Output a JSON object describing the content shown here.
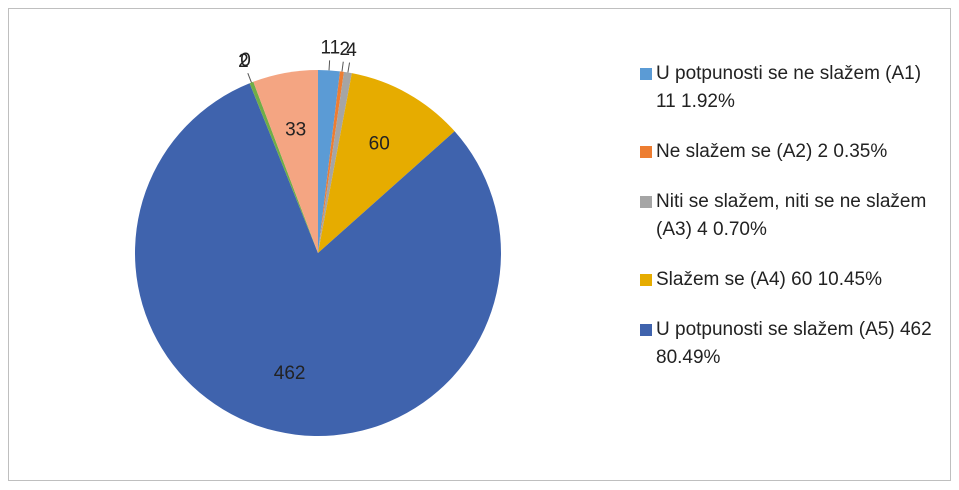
{
  "chart_data": {
    "type": "pie",
    "categories": [
      "U potpunosti se ne slažem (A1) 11 1.92%",
      "Ne slažem se (A2) 2 0.35%",
      "Niti se slažem, niti se ne slažem (A3) 4 0.70%",
      "Slažem se (A4) 60 10.45%",
      "U potpunosti se slažem (A5) 462 80.49%",
      null,
      null,
      null
    ],
    "values": [
      11,
      2,
      4,
      60,
      462,
      2,
      0,
      33
    ],
    "colors": [
      "#5b9bd5",
      "#ed7d31",
      "#a5a5a5",
      "#e6ac00",
      "#3f63ad",
      "#70ad47",
      "#264478",
      "#f4a582"
    ],
    "legend": "right"
  }
}
